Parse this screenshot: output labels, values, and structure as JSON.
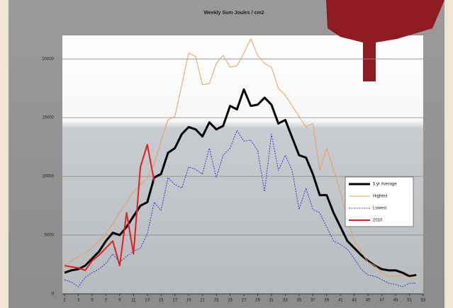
{
  "chart_data": {
    "type": "line",
    "title": "Weekly Sum Joules / cm2",
    "x": [
      1,
      2,
      3,
      4,
      5,
      6,
      7,
      8,
      9,
      10,
      11,
      12,
      13,
      14,
      15,
      16,
      17,
      18,
      19,
      20,
      21,
      22,
      23,
      24,
      25,
      26,
      27,
      28,
      29,
      30,
      31,
      32,
      33,
      34,
      35,
      36,
      37,
      38,
      39,
      40,
      41,
      42,
      43,
      44,
      45,
      46,
      47,
      48,
      49,
      50,
      51,
      52
    ],
    "series": [
      {
        "name": "5 yr Average",
        "color": "#000000",
        "width": 3,
        "dash": false,
        "values": [
          1800,
          2000,
          2100,
          2400,
          3000,
          3600,
          4500,
          5200,
          5000,
          5700,
          6600,
          7500,
          7800,
          9900,
          10200,
          12000,
          12400,
          13600,
          14200,
          14000,
          13400,
          14600,
          14000,
          14300,
          16000,
          15700,
          17400,
          16000,
          16100,
          16700,
          16100,
          14500,
          14800,
          13300,
          11800,
          11600,
          10200,
          8400,
          8400,
          6900,
          5700,
          4500,
          3900,
          3300,
          2800,
          2400,
          2100,
          2000,
          2000,
          1800,
          1500,
          1600
        ]
      },
      {
        "name": "Highest",
        "color": "#e8a060",
        "width": 1,
        "dash": false,
        "values": [
          2400,
          2800,
          3200,
          3500,
          3900,
          4500,
          5100,
          6000,
          6900,
          7800,
          8700,
          9300,
          9900,
          11100,
          13000,
          14800,
          15100,
          17800,
          20500,
          20200,
          17800,
          17900,
          19600,
          20300,
          19300,
          19400,
          20500,
          21700,
          20300,
          19600,
          19300,
          17500,
          16900,
          16000,
          15100,
          14200,
          14500,
          10500,
          12400,
          10500,
          8700,
          6300,
          4500,
          3600,
          2700,
          2400,
          1800,
          1500,
          1500,
          1600,
          1400,
          1500
        ]
      },
      {
        "name": "Lowest",
        "color": "#3a3ac8",
        "width": 1,
        "dash": true,
        "values": [
          1200,
          1000,
          600,
          1400,
          1800,
          2100,
          2600,
          3400,
          2700,
          3200,
          3600,
          3900,
          5100,
          7800,
          7100,
          9900,
          9300,
          9000,
          10800,
          10600,
          10200,
          12400,
          9900,
          11800,
          12400,
          13900,
          13000,
          13100,
          12200,
          8700,
          13600,
          10500,
          11800,
          10500,
          7200,
          9000,
          7200,
          6900,
          5700,
          4500,
          4200,
          3800,
          3000,
          2100,
          1600,
          1500,
          1200,
          900,
          800,
          600,
          900,
          900
        ]
      },
      {
        "name": "2010",
        "color": "#e02020",
        "width": 2,
        "dash": false,
        "values": [
          2400,
          2300,
          2200,
          2000,
          2800,
          3300,
          3900,
          4500,
          2400,
          6900,
          3400,
          10800,
          12700,
          9600,
          null,
          null,
          null,
          null,
          null,
          null,
          null,
          null,
          null,
          null,
          null,
          null,
          null,
          null,
          null,
          null,
          null,
          null,
          null,
          null,
          null,
          null,
          null,
          null,
          null,
          null,
          null,
          null,
          null,
          null,
          null,
          null,
          null,
          null,
          null,
          null,
          null,
          null
        ]
      }
    ],
    "xlim": [
      1,
      53
    ],
    "xticks": [
      1,
      3,
      5,
      7,
      9,
      11,
      13,
      15,
      17,
      19,
      21,
      23,
      25,
      27,
      29,
      31,
      33,
      35,
      37,
      39,
      41,
      43,
      45,
      47,
      49,
      51,
      53
    ],
    "ylim": [
      0,
      22000
    ],
    "yticks": [
      0,
      5000,
      10000,
      15000,
      20000
    ],
    "grid": true,
    "legend": "right"
  }
}
